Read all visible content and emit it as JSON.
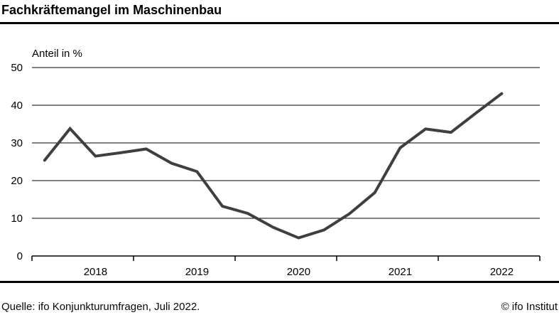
{
  "header": {
    "title": "Fachkräftemangel im Maschinenbau"
  },
  "chart_data": {
    "type": "line",
    "title": "Fachkräftemangel im Maschinenbau",
    "subtitle": "",
    "xlabel": "",
    "ylabel": "Anteil in %",
    "ylim": [
      0,
      50
    ],
    "yticks": [
      0,
      10,
      20,
      30,
      40,
      50
    ],
    "ytick_labels": [
      "0",
      "10",
      "20",
      "30",
      "40",
      "50"
    ],
    "x_year_labels": [
      "2018",
      "2019",
      "2020",
      "2021",
      "2022"
    ],
    "x": [
      "2018 Q1",
      "2018 Q2",
      "2018 Q3",
      "2018 Q4",
      "2019 Q1",
      "2019 Q2",
      "2019 Q3",
      "2019 Q4",
      "2020 Q1",
      "2020 Q2",
      "2020 Q3",
      "2020 Q4",
      "2021 Q1",
      "2021 Q2",
      "2021 Q3",
      "2021 Q4",
      "2022 Q1",
      "2022 Q2",
      "2022 Q3"
    ],
    "series": [
      {
        "name": "Anteil der Firmen mit Fachkräftemangel in %",
        "values": [
          25.4,
          33.8,
          26.5,
          27.4,
          28.4,
          24.6,
          22.4,
          13.2,
          11.3,
          7.6,
          4.8,
          6.9,
          11.2,
          16.8,
          28.7,
          33.7,
          32.8,
          38.0,
          43.1
        ]
      }
    ],
    "grid": true,
    "legend": false,
    "line_color": "#3f3f3f",
    "grid_color": "#000000",
    "axis_color": "#000000"
  },
  "footer": {
    "source": "Quelle: ifo Konjunkturumfragen, Juli 2022.",
    "copyright": "© ifo Institut"
  }
}
